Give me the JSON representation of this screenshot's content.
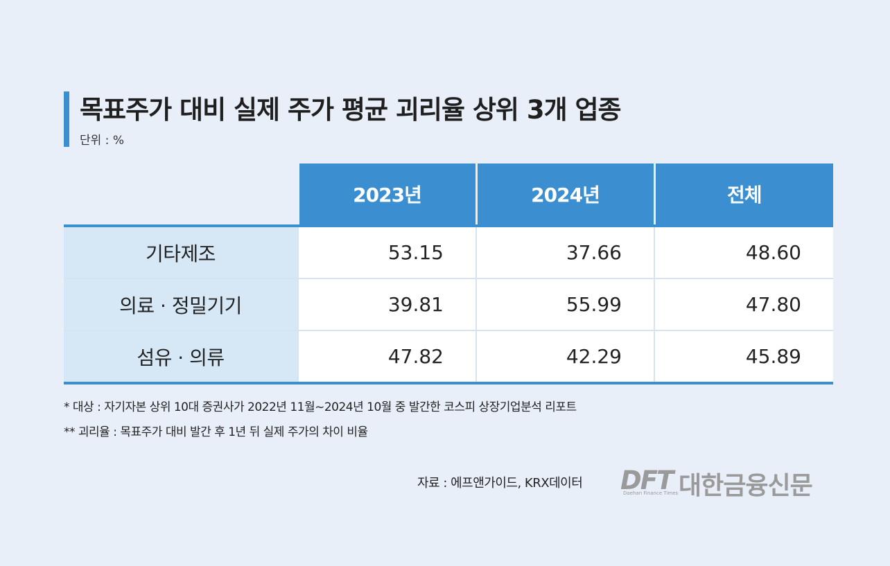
{
  "title": "목표주가 대비 실제 주가 평균 괴리율 상위 3개 업종",
  "unit": "단위 : %",
  "chart_data": {
    "type": "table",
    "columns": [
      "2023년",
      "2024년",
      "전체"
    ],
    "rows": [
      {
        "category": "기타제조",
        "values": [
          "53.15",
          "37.66",
          "48.60"
        ]
      },
      {
        "category": "의료 · 정밀기기",
        "values": [
          "39.81",
          "55.99",
          "47.80"
        ]
      },
      {
        "category": "섬유 · 의류",
        "values": [
          "47.82",
          "42.29",
          "45.89"
        ]
      }
    ]
  },
  "notes": [
    "* 대상 : 자기자본 상위 10대 증권사가 2022년 11월~2024년 10월 중 발간한 코스피 상장기업분석 리포트",
    "** 괴리율 : 목표주가 대비 발간 후 1년 뒤 실제 주가의 차이 비율"
  ],
  "source": "자료 : 에프앤가이드, KRX데이터",
  "logo": {
    "mark": "DFT",
    "name": "대한금융신문",
    "subtitle": "Daehan Finance Times"
  },
  "colors": {
    "accent": "#3b8fd0",
    "category_bg": "#d6e8f6",
    "page_bg": "#e8eff8"
  }
}
